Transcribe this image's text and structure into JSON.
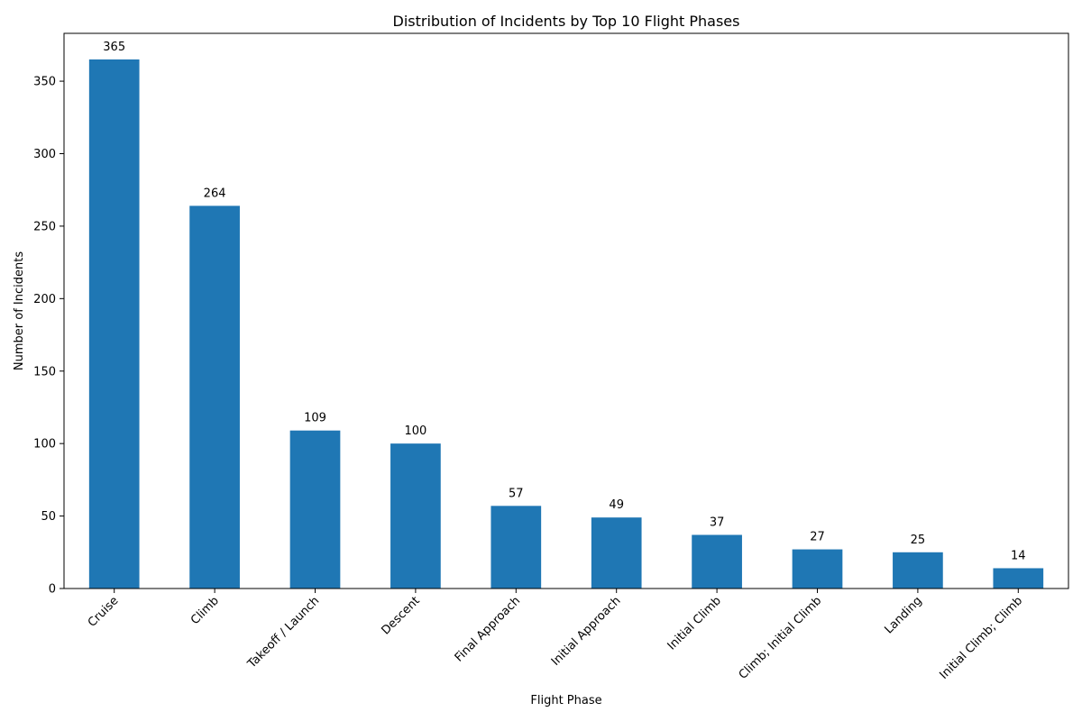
{
  "chart_data": {
    "type": "bar",
    "title": "Distribution of Incidents by Top 10 Flight Phases",
    "xlabel": "Flight Phase",
    "ylabel": "Number of Incidents",
    "categories": [
      "Cruise",
      "Climb",
      "Takeoff / Launch",
      "Descent",
      "Final Approach",
      "Initial Approach",
      "Initial Climb",
      "Climb; Initial Climb",
      "Landing",
      "Initial Climb; Climb"
    ],
    "values": [
      365,
      264,
      109,
      100,
      57,
      49,
      37,
      27,
      25,
      14
    ],
    "ylim": [
      0,
      383
    ],
    "yticks": [
      0,
      50,
      100,
      150,
      200,
      250,
      300,
      350
    ],
    "grid": false,
    "legend": "none",
    "bar_color": "#1f77b4",
    "show_data_labels": true
  }
}
